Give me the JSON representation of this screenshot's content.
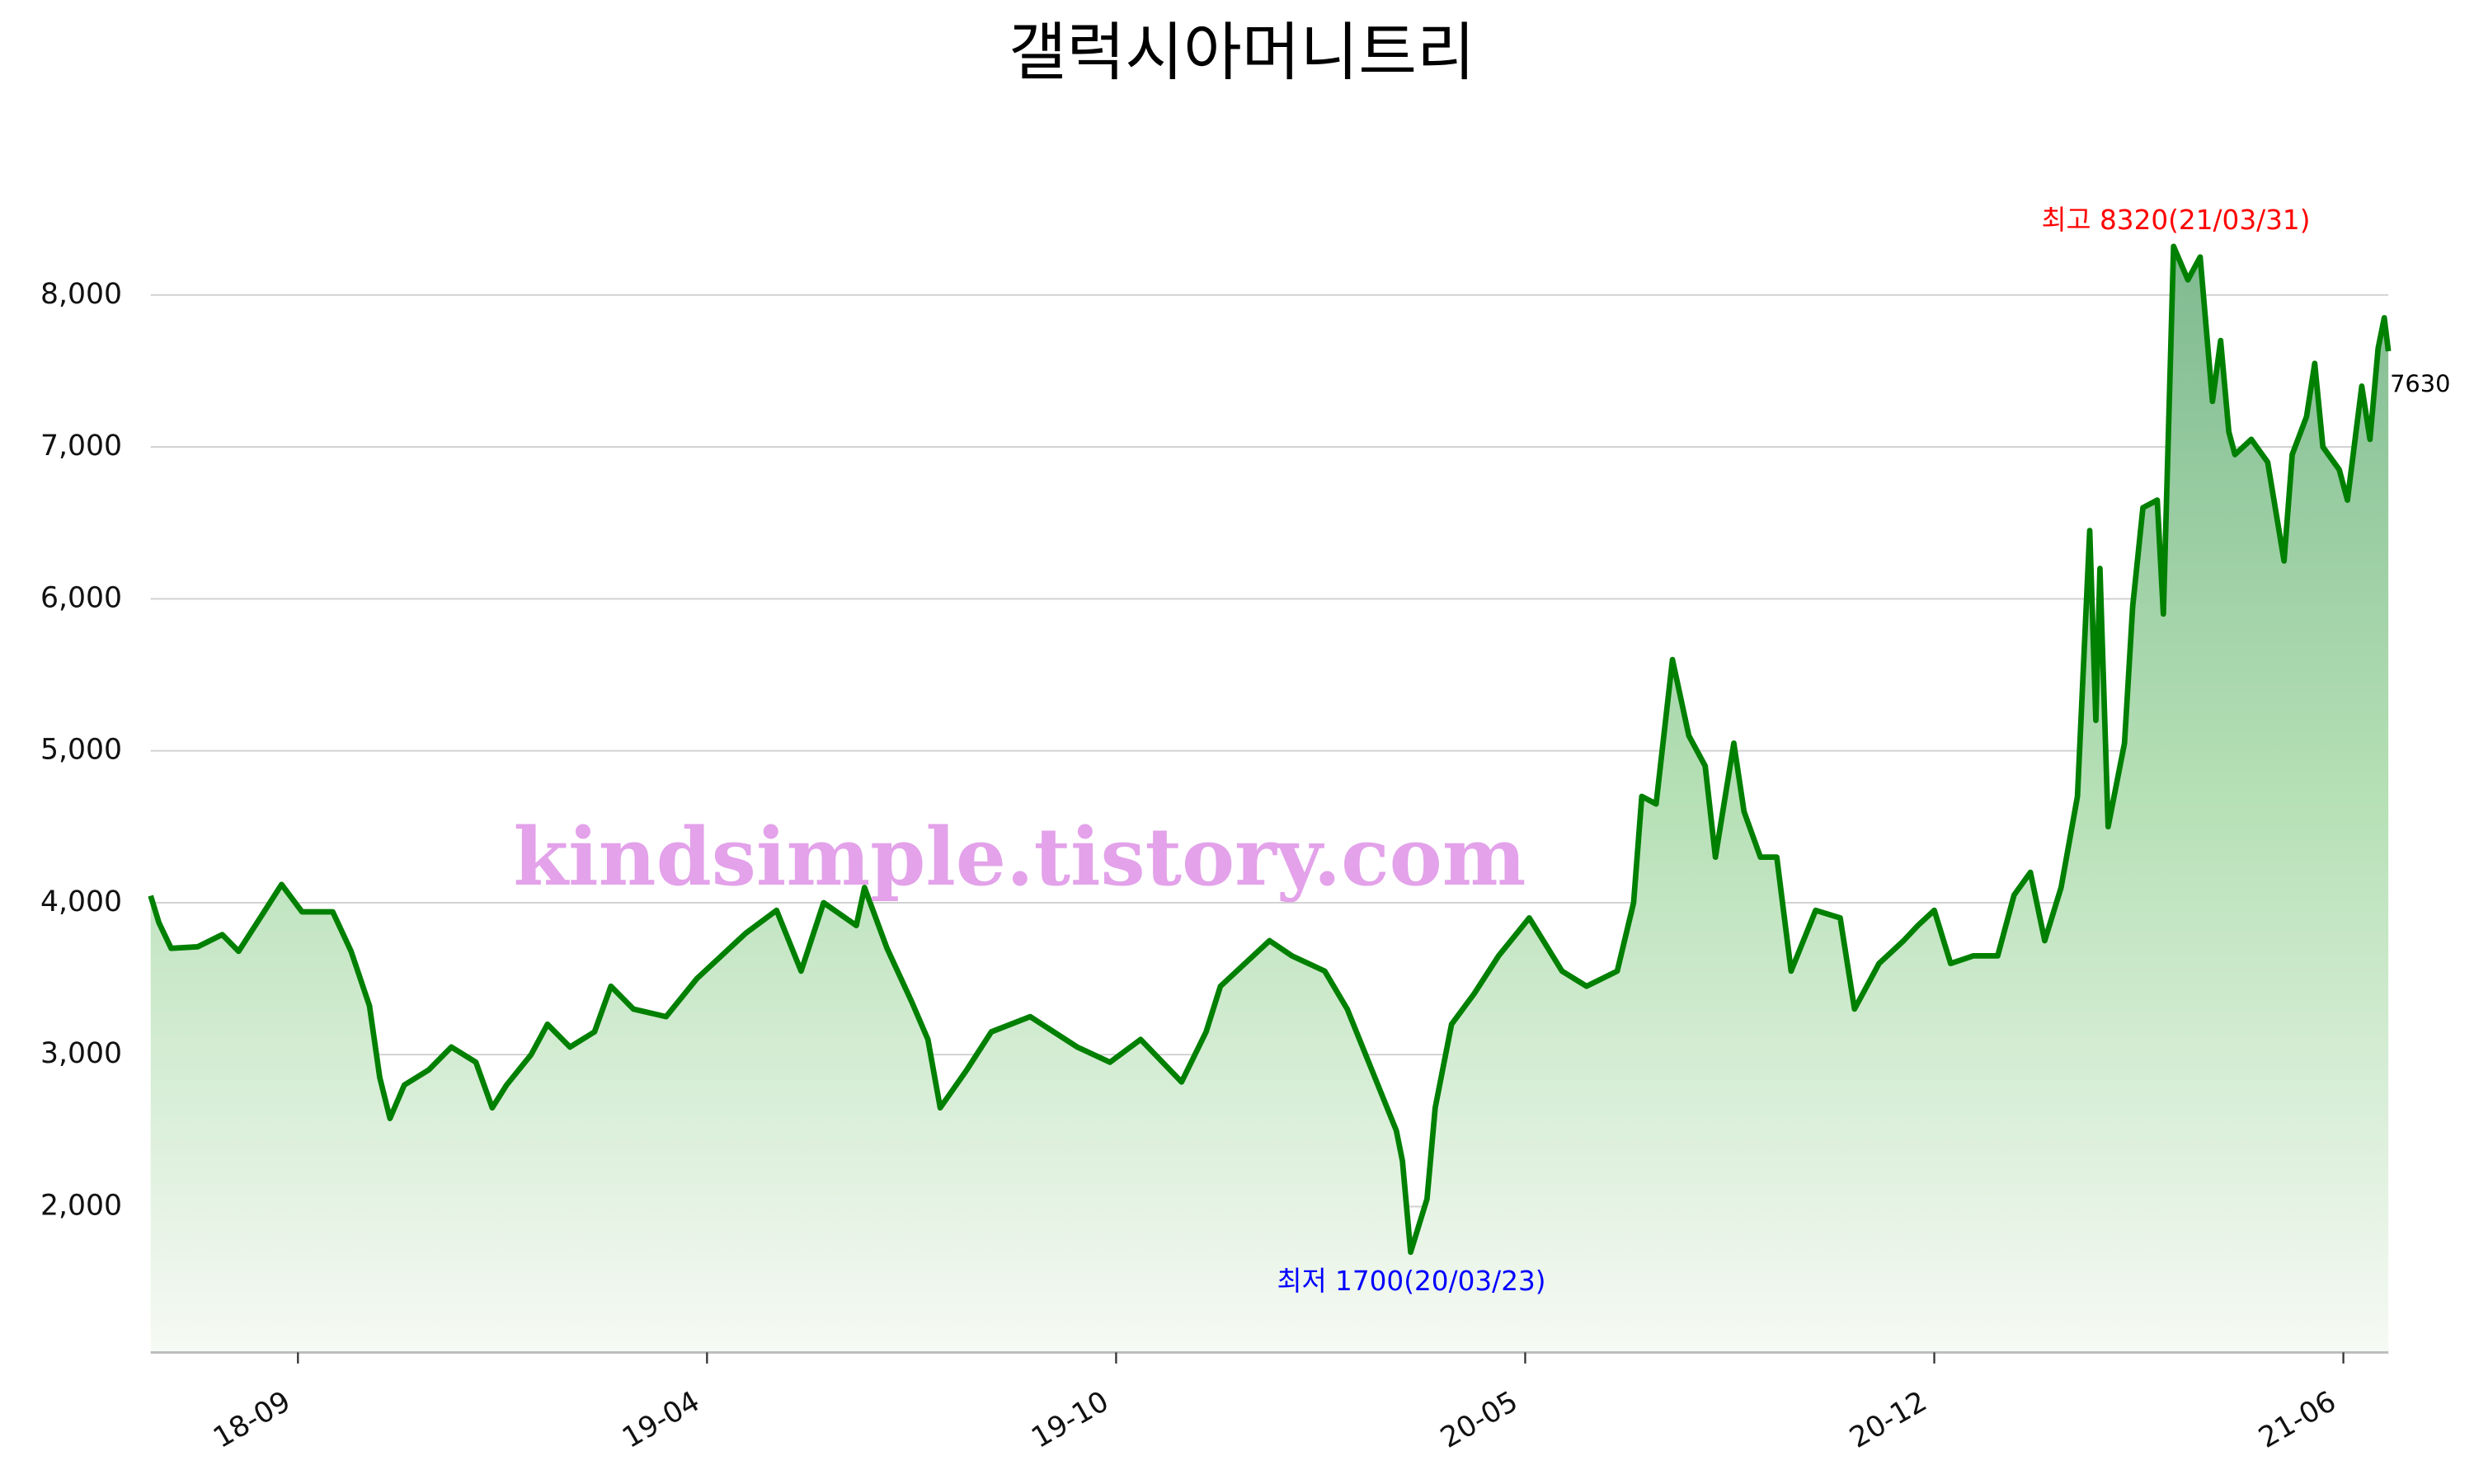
{
  "chart_data": {
    "type": "line",
    "title": "갤럭시아머니트리",
    "x": [
      "2018-07-16",
      "2018-07-20",
      "2018-07-26",
      "2018-08-08",
      "2018-08-20",
      "2018-08-28",
      "2018-09-08",
      "2018-09-18",
      "2018-09-28",
      "2018-10-13",
      "2018-10-22",
      "2018-10-31",
      "2018-11-05",
      "2018-11-10",
      "2018-11-17",
      "2018-11-29",
      "2018-12-10",
      "2018-12-22",
      "2018-12-30",
      "2019-01-06",
      "2019-01-18",
      "2019-01-26",
      "2019-02-06",
      "2019-02-18",
      "2019-02-26",
      "2019-03-09",
      "2019-03-25",
      "2019-04-09",
      "2019-04-21",
      "2019-05-03",
      "2019-05-18",
      "2019-05-30",
      "2019-06-10",
      "2019-06-26",
      "2019-06-30",
      "2019-07-11",
      "2019-07-23",
      "2019-07-31",
      "2019-08-06",
      "2019-08-19",
      "2019-08-31",
      "2019-09-19",
      "2019-10-12",
      "2019-10-28",
      "2019-11-12",
      "2019-12-02",
      "2019-12-14",
      "2019-12-21",
      "2020-01-06",
      "2020-01-14",
      "2020-01-25",
      "2020-02-10",
      "2020-02-21",
      "2020-03-04",
      "2020-03-16",
      "2020-03-19",
      "2020-03-23",
      "2020-03-31",
      "2020-04-04",
      "2020-04-12",
      "2020-04-23",
      "2020-05-05",
      "2020-05-20",
      "2020-06-05",
      "2020-06-17",
      "2020-07-02",
      "2020-07-10",
      "2020-07-14",
      "2020-07-21",
      "2020-07-29",
      "2020-08-06",
      "2020-08-14",
      "2020-08-19",
      "2020-08-28",
      "2020-09-02",
      "2020-09-10",
      "2020-09-18",
      "2020-09-25",
      "2020-10-07",
      "2020-10-19",
      "2020-10-26",
      "2020-11-07",
      "2020-11-19",
      "2020-11-26",
      "2020-12-04",
      "2020-12-12",
      "2020-12-23",
      "2021-01-04",
      "2021-01-12",
      "2021-01-20",
      "2021-01-27",
      "2021-02-04",
      "2021-02-12",
      "2021-02-18",
      "2021-02-21",
      "2021-02-23",
      "2021-02-27",
      "2021-03-07",
      "2021-03-11",
      "2021-03-16",
      "2021-03-23",
      "2021-03-26",
      "2021-03-31",
      "2021-04-07",
      "2021-04-13",
      "2021-04-19",
      "2021-04-23",
      "2021-04-27",
      "2021-04-30",
      "2021-05-08",
      "2021-05-16",
      "2021-05-24",
      "2021-05-28",
      "2021-06-04",
      "2021-06-08",
      "2021-06-12",
      "2021-06-20",
      "2021-06-24",
      "2021-07-01",
      "2021-07-05",
      "2021-07-09",
      "2021-07-12",
      "2021-07-14"
    ],
    "values": [
      4046,
      3870,
      3700,
      3710,
      3790,
      3680,
      3910,
      4120,
      3940,
      3940,
      3680,
      3320,
      2850,
      2580,
      2800,
      2900,
      3050,
      2950,
      2650,
      2800,
      3000,
      3200,
      3050,
      3150,
      3450,
      3300,
      3250,
      3500,
      3650,
      3800,
      3950,
      3550,
      4000,
      3850,
      4100,
      3700,
      3350,
      3100,
      2650,
      2900,
      3150,
      3250,
      3050,
      2950,
      3100,
      2820,
      3150,
      3450,
      3650,
      3750,
      3650,
      3550,
      3300,
      2900,
      2500,
      2300,
      1700,
      2050,
      2650,
      3200,
      3400,
      3650,
      3900,
      3550,
      3450,
      3550,
      4000,
      4700,
      4650,
      5600,
      5100,
      4900,
      4300,
      5050,
      4600,
      4300,
      4300,
      3550,
      3950,
      3900,
      3300,
      3600,
      3750,
      3850,
      3950,
      3600,
      3650,
      3650,
      4050,
      4200,
      3750,
      4100,
      4700,
      6450,
      5200,
      6200,
      4500,
      5050,
      5950,
      6600,
      6650,
      5900,
      8320,
      8100,
      8250,
      7300,
      7700,
      7100,
      6950,
      7050,
      6900,
      6250,
      6950,
      7200,
      7550,
      7000,
      6850,
      6650,
      7400,
      7050,
      7650,
      7850,
      7630
    ],
    "color": "#008000",
    "xlim": [
      "2018-07-16",
      "2021-07-14"
    ],
    "xticks": [
      {
        "value": "2018-09-26",
        "label": "18-09"
      },
      {
        "value": "2019-04-14",
        "label": "19-04"
      },
      {
        "value": "2019-10-31",
        "label": "19-10"
      },
      {
        "value": "2020-05-18",
        "label": "20-05"
      },
      {
        "value": "2020-12-04",
        "label": "20-12"
      },
      {
        "value": "2021-06-22",
        "label": "21-06"
      }
    ],
    "ylim": [
      1040,
      8700
    ],
    "yticks": [
      {
        "value": 2000,
        "label": "2,000"
      },
      {
        "value": 3000,
        "label": "3,000"
      },
      {
        "value": 4000,
        "label": "4,000"
      },
      {
        "value": 5000,
        "label": "5,000"
      },
      {
        "value": 6000,
        "label": "6,000"
      },
      {
        "value": 7000,
        "label": "7,000"
      },
      {
        "value": 8000,
        "label": "8,000"
      }
    ],
    "grid": true,
    "annotations": [
      {
        "text": "최고 8320(21/03/31)",
        "color": "#ff0000"
      },
      {
        "text": "최저 1700(20/03/23)",
        "color": "#0000ff"
      },
      {
        "text": "7630",
        "color": "#000000"
      }
    ],
    "watermark": {
      "text": "kindsimple.tistory.com",
      "color": "#e3a2ea"
    }
  }
}
